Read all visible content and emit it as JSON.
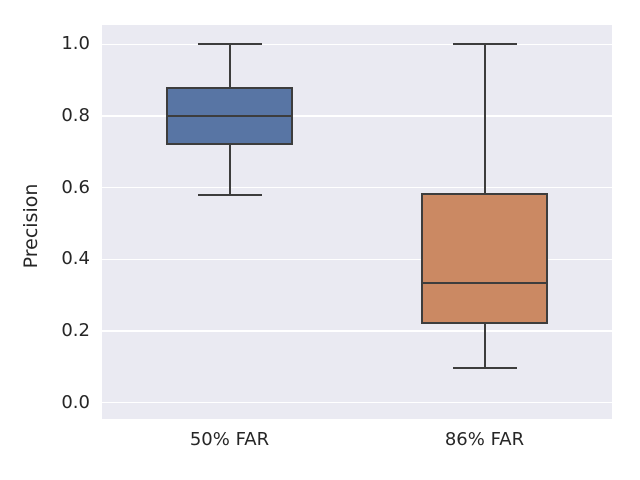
{
  "colors": {
    "figure_background": "#FFFFFF",
    "plot_background": "#EAEAF2",
    "gridline": "#FFFFFF",
    "box_edge": "#3D3D3D",
    "text": "#262626",
    "box_fill_blue": "#5875A4",
    "box_fill_orange": "#CB8963"
  },
  "chart_data": {
    "type": "boxplot",
    "title": "",
    "xlabel": "",
    "ylabel": "Precision",
    "categories": [
      "50% FAR",
      "86% FAR"
    ],
    "ytick_labels": [
      "0.0",
      "0.2",
      "0.4",
      "0.6",
      "0.8",
      "1.0"
    ],
    "ytick_values": [
      0.0,
      0.2,
      0.4,
      0.6,
      0.8,
      1.0
    ],
    "ylim": [
      -0.046,
      1.054
    ],
    "grid": "horizontal-only",
    "legend": "none",
    "boxes": [
      {
        "label": "50% FAR",
        "whisker_low": 0.58,
        "q1": 0.72,
        "median": 0.8,
        "q3": 0.88,
        "whisker_high": 1.0,
        "fill": "#5875A4",
        "outliers": []
      },
      {
        "label": "86% FAR",
        "whisker_low": 0.095,
        "q1": 0.22,
        "median": 0.335,
        "q3": 0.585,
        "whisker_high": 1.0,
        "fill": "#CB8963",
        "outliers": []
      }
    ]
  }
}
